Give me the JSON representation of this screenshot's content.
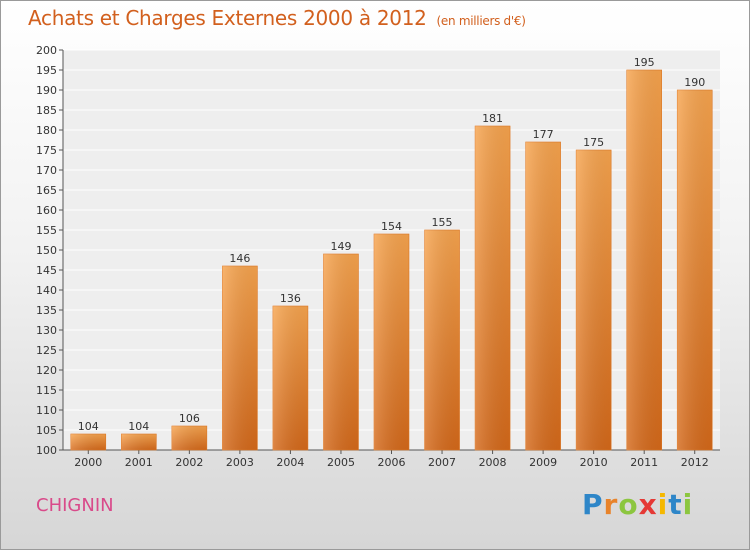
{
  "title": "Achats et Charges Externes 2000 à 2012",
  "subtitle": "(en milliers d'€)",
  "location": "CHIGNIN",
  "brand": {
    "letters": [
      "P",
      "r",
      "o",
      "x",
      "i",
      "t",
      "i"
    ],
    "colors": [
      "#2e86c8",
      "#e8832a",
      "#8cc63f",
      "#e53935",
      "#f5b800",
      "#2e86c8",
      "#8cc63f"
    ]
  },
  "colors": {
    "bar": "#f0862e",
    "title": "#d2601e",
    "location": "#d94a8a"
  },
  "chart_data": {
    "type": "bar",
    "title": "Achats et Charges Externes 2000 à 2012",
    "subtitle": "(en milliers d'€)",
    "xlabel": "",
    "ylabel": "",
    "categories": [
      "2000",
      "2001",
      "2002",
      "2003",
      "2004",
      "2005",
      "2006",
      "2007",
      "2008",
      "2009",
      "2010",
      "2011",
      "2012"
    ],
    "values": [
      104,
      104,
      106,
      146,
      136,
      149,
      154,
      155,
      181,
      177,
      175,
      195,
      190
    ],
    "ylim": [
      100,
      200
    ],
    "yticks": [
      100,
      105,
      110,
      115,
      120,
      125,
      130,
      135,
      140,
      145,
      150,
      155,
      160,
      165,
      170,
      175,
      180,
      185,
      190,
      195,
      200
    ],
    "grid": true,
    "data_labels": true,
    "legend": "none"
  }
}
